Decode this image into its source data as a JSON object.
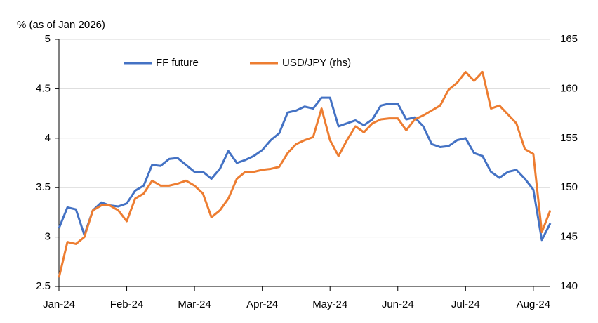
{
  "chart_data": {
    "type": "line",
    "y_axis_label": "% (as of Jan 2026)",
    "categories": [
      "Jan-24",
      null,
      null,
      null,
      null,
      null,
      null,
      null,
      "Feb-24",
      null,
      null,
      null,
      null,
      null,
      null,
      null,
      "Mar-24",
      null,
      null,
      null,
      null,
      null,
      null,
      null,
      "Apr-24",
      null,
      null,
      null,
      null,
      null,
      null,
      null,
      "May-24",
      null,
      null,
      null,
      null,
      null,
      null,
      null,
      "Jun-24",
      null,
      null,
      null,
      null,
      null,
      null,
      null,
      "Jul-24",
      null,
      null,
      null,
      null,
      null,
      null,
      null,
      "Aug-24",
      null,
      null
    ],
    "series": [
      {
        "name": "FF future",
        "color": "#4472c4",
        "axis": "y",
        "values": [
          3.09,
          3.3,
          3.28,
          3.02,
          3.27,
          3.35,
          3.32,
          3.31,
          3.34,
          3.47,
          3.52,
          3.73,
          3.72,
          3.79,
          3.8,
          3.73,
          3.66,
          3.66,
          3.59,
          3.69,
          3.87,
          3.75,
          3.78,
          3.82,
          3.88,
          3.98,
          4.05,
          4.26,
          4.28,
          4.32,
          4.3,
          4.41,
          4.41,
          4.12,
          4.15,
          4.18,
          4.13,
          4.19,
          4.33,
          4.35,
          4.35,
          4.19,
          4.21,
          4.12,
          3.94,
          3.91,
          3.92,
          3.98,
          4.0,
          3.85,
          3.82,
          3.66,
          3.6,
          3.66,
          3.68,
          3.59,
          3.48,
          2.97,
          3.14
        ]
      },
      {
        "name": "USD/JPY (rhs)",
        "color": "#ed7d31",
        "axis": "y2",
        "values": [
          140.9,
          144.5,
          144.3,
          145.0,
          147.7,
          148.2,
          148.2,
          147.7,
          146.6,
          148.9,
          149.4,
          150.7,
          150.2,
          150.2,
          150.4,
          150.7,
          150.2,
          149.4,
          147.0,
          147.7,
          148.9,
          150.9,
          151.6,
          151.6,
          151.8,
          151.9,
          152.1,
          153.5,
          154.4,
          154.8,
          155.1,
          158.0,
          154.8,
          153.2,
          154.8,
          156.2,
          155.6,
          156.5,
          156.9,
          157.0,
          157.0,
          155.8,
          156.9,
          157.3,
          157.8,
          158.3,
          159.9,
          160.6,
          161.7,
          160.8,
          161.7,
          158.0,
          158.3,
          157.4,
          156.5,
          153.9,
          153.4,
          145.5,
          147.7
        ]
      }
    ],
    "ylim": [
      2.5,
      5
    ],
    "yticks": [
      2.5,
      3,
      3.5,
      4,
      4.5,
      5
    ],
    "y2lim": [
      140,
      165
    ],
    "y2ticks": [
      140,
      145,
      150,
      155,
      160,
      165
    ],
    "grid": true,
    "legend": "top"
  }
}
